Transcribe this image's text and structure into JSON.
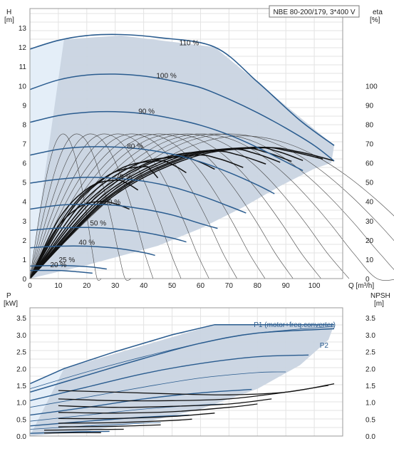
{
  "chart_data": [
    {
      "id": "head",
      "type": "line",
      "title": "NBE 80-200/179, 3*400 V",
      "xlabel": "Q [m³/h]",
      "ylabel_unit": "[m]",
      "ylabel_symbol": "H",
      "y2label_symbol": "eta",
      "y2label_unit": "[%]",
      "xlim": [
        0,
        110
      ],
      "ylim": [
        0,
        14
      ],
      "y2lim": [
        0,
        140
      ],
      "x_ticks": [
        0,
        10,
        20,
        30,
        40,
        50,
        60,
        70,
        80,
        90,
        100
      ],
      "x_tick_labels": [
        "0",
        "10",
        "20",
        "30",
        "40",
        "50",
        "60",
        "70",
        "80",
        "90",
        "100"
      ],
      "y_ticks": [
        0,
        1,
        2,
        3,
        4,
        5,
        6,
        7,
        8,
        9,
        10,
        11,
        12,
        13
      ],
      "y_tick_labels": [
        "0",
        "1",
        "2",
        "3",
        "4",
        "5",
        "6",
        "7",
        "8",
        "9",
        "10",
        "11",
        "12",
        "13"
      ],
      "y2_ticks": [
        0,
        10,
        20,
        30,
        40,
        50,
        60,
        70,
        80,
        90,
        100
      ],
      "y2_tick_labels": [
        "0",
        "10",
        "20",
        "30",
        "40",
        "50",
        "60",
        "70",
        "80",
        "90",
        "100"
      ],
      "grid": true,
      "envelope": [
        [
          0,
          0
        ],
        [
          0,
          11.9
        ],
        [
          12,
          12.4
        ],
        [
          32,
          12.6
        ],
        [
          65,
          12
        ],
        [
          107,
          6.9
        ],
        [
          106,
          6
        ],
        [
          100,
          5.7
        ],
        [
          88,
          4.8
        ],
        [
          75,
          3.7
        ],
        [
          60,
          2.6
        ],
        [
          45,
          1.7
        ],
        [
          30,
          1.1
        ],
        [
          20,
          0.7
        ],
        [
          10,
          0.35
        ],
        [
          0,
          0
        ]
      ],
      "speed_curves": [
        {
          "label": "110 %",
          "label_x": 56,
          "label_y": 12.1,
          "points": [
            [
              0,
              11.9
            ],
            [
              10,
              12.35
            ],
            [
              20,
              12.6
            ],
            [
              32,
              12.65
            ],
            [
              45,
              12.5
            ],
            [
              65,
              12.0
            ],
            [
              80,
              10.2
            ],
            [
              95,
              8.2
            ],
            [
              107,
              6.9
            ]
          ]
        },
        {
          "label": "100 %",
          "label_x": 48,
          "label_y": 10.4,
          "points": [
            [
              0,
              9.8
            ],
            [
              10,
              10.3
            ],
            [
              20,
              10.55
            ],
            [
              30,
              10.6
            ],
            [
              40,
              10.5
            ],
            [
              50,
              10.25
            ],
            [
              60,
              9.9
            ],
            [
              70,
              9.3
            ],
            [
              80,
              8.6
            ],
            [
              90,
              7.8
            ],
            [
              100,
              6.9
            ],
            [
              107,
              6.1
            ]
          ]
        },
        {
          "label": "90 %",
          "label_x": 41,
          "label_y": 8.55,
          "points": [
            [
              0,
              8.1
            ],
            [
              10,
              8.45
            ],
            [
              20,
              8.62
            ],
            [
              30,
              8.65
            ],
            [
              40,
              8.55
            ],
            [
              50,
              8.3
            ],
            [
              60,
              7.95
            ],
            [
              70,
              7.45
            ],
            [
              80,
              6.8
            ],
            [
              90,
              6.05
            ],
            [
              96,
              5.6
            ]
          ]
        },
        {
          "label": "80 %",
          "label_x": 37,
          "label_y": 6.75,
          "points": [
            [
              0,
              6.4
            ],
            [
              10,
              6.7
            ],
            [
              20,
              6.83
            ],
            [
              30,
              6.82
            ],
            [
              40,
              6.7
            ],
            [
              50,
              6.45
            ],
            [
              60,
              6.05
            ],
            [
              70,
              5.5
            ],
            [
              80,
              4.85
            ],
            [
              86,
              4.4
            ]
          ]
        },
        {
          "label": "70 %",
          "label_x": 33,
          "label_y": 5.15,
          "points": [
            [
              0,
              4.95
            ],
            [
              10,
              5.15
            ],
            [
              20,
              5.25
            ],
            [
              30,
              5.2
            ],
            [
              40,
              5.05
            ],
            [
              50,
              4.75
            ],
            [
              60,
              4.3
            ],
            [
              70,
              3.75
            ],
            [
              76,
              3.4
            ]
          ]
        },
        {
          "label": "60 %",
          "label_x": 29,
          "label_y": 3.85,
          "points": [
            [
              0,
              3.6
            ],
            [
              10,
              3.8
            ],
            [
              20,
              3.85
            ],
            [
              30,
              3.8
            ],
            [
              40,
              3.6
            ],
            [
              50,
              3.3
            ],
            [
              60,
              2.85
            ],
            [
              66,
              2.6
            ]
          ]
        },
        {
          "label": "50 %",
          "label_x": 24,
          "label_y": 2.75,
          "points": [
            [
              0,
              2.5
            ],
            [
              10,
              2.62
            ],
            [
              20,
              2.65
            ],
            [
              30,
              2.58
            ],
            [
              40,
              2.4
            ],
            [
              50,
              2.1
            ],
            [
              55,
              1.9
            ]
          ]
        },
        {
          "label": "40 %",
          "label_x": 20,
          "label_y": 1.75,
          "points": [
            [
              0,
              1.6
            ],
            [
              10,
              1.68
            ],
            [
              20,
              1.68
            ],
            [
              30,
              1.58
            ],
            [
              40,
              1.35
            ],
            [
              44,
              1.2
            ]
          ]
        },
        {
          "label": "25 %",
          "label_x": 13,
          "label_y": 0.85,
          "points": [
            [
              0,
              0.65
            ],
            [
              10,
              0.68
            ],
            [
              20,
              0.62
            ],
            [
              27,
              0.5
            ]
          ]
        },
        {
          "label": "20 %",
          "label_x": 10,
          "label_y": 0.6,
          "points": [
            [
              0,
              0.42
            ],
            [
              10,
              0.42
            ],
            [
              17,
              0.35
            ],
            [
              22,
              0.28
            ]
          ]
        }
      ],
      "eta_curves_thin_peaks": [
        [
          12,
          75
        ],
        [
          17,
          75
        ],
        [
          22,
          75
        ],
        [
          27,
          75
        ],
        [
          32,
          75
        ],
        [
          37,
          75
        ],
        [
          42,
          75
        ],
        [
          47,
          75
        ],
        [
          52,
          75
        ],
        [
          57,
          75
        ],
        [
          62,
          75
        ],
        [
          67,
          75
        ],
        [
          72,
          75
        ],
        [
          77,
          74
        ]
      ],
      "eta_curves_bold_peaks": [
        [
          25,
          40
        ],
        [
          30,
          51
        ],
        [
          40,
          58
        ],
        [
          45,
          61
        ],
        [
          52,
          63
        ],
        [
          58,
          64
        ],
        [
          64,
          66
        ],
        [
          70,
          67
        ],
        [
          74,
          67.5
        ],
        [
          78,
          68
        ],
        [
          80,
          68
        ],
        [
          82,
          67.8
        ]
      ],
      "eta_curves_bold_ends": [
        [
          35,
          13
        ],
        [
          38,
          18
        ],
        [
          45,
          25
        ],
        [
          55,
          35
        ],
        [
          65,
          43
        ],
        [
          75,
          50
        ],
        [
          83,
          55
        ],
        [
          88,
          58
        ],
        [
          92,
          60
        ],
        [
          96,
          61
        ],
        [
          103,
          62
        ],
        [
          107,
          61
        ]
      ]
    },
    {
      "id": "power",
      "type": "line",
      "xlim": [
        0,
        110
      ],
      "ylim": [
        0,
        3.8
      ],
      "y2lim": [
        0,
        3.8
      ],
      "ylabel_symbol": "P",
      "ylabel_unit": "[kW]",
      "y2label_symbol": "NPSH",
      "y2label_unit": "[m]",
      "y_ticks": [
        0,
        0.5,
        1,
        1.5,
        2,
        2.5,
        3,
        3.5
      ],
      "y_tick_labels": [
        "0.0",
        "0.5",
        "1.0",
        "1.5",
        "2.0",
        "2.5",
        "3.0",
        "3.5"
      ],
      "y2_tick_labels": [
        "0.0",
        "0.5",
        "1.0",
        "1.5",
        "2.0",
        "2.5",
        "3.0",
        "3.5"
      ],
      "grid": true,
      "legend": [
        "P1 (motor+freq.converter)",
        "P2"
      ],
      "envelope": [
        [
          0,
          0
        ],
        [
          0,
          1.55
        ],
        [
          12,
          2.0
        ],
        [
          65,
          3.3
        ],
        [
          107,
          3.3
        ],
        [
          105,
          2.85
        ],
        [
          95,
          2.1
        ],
        [
          80,
          1.4
        ],
        [
          60,
          0.8
        ],
        [
          40,
          0.4
        ],
        [
          20,
          0.15
        ],
        [
          0,
          0
        ]
      ],
      "p1_curve": [
        [
          0,
          1.55
        ],
        [
          12,
          2.0
        ],
        [
          30,
          2.5
        ],
        [
          50,
          3.0
        ],
        [
          65,
          3.3
        ],
        [
          107,
          3.3
        ]
      ],
      "p2_curve": [
        [
          0,
          1.3
        ],
        [
          20,
          1.8
        ],
        [
          40,
          2.3
        ],
        [
          60,
          2.75
        ],
        [
          80,
          3.05
        ],
        [
          107,
          3.18
        ]
      ],
      "p2_thin_curves": [
        [
          [
            0,
            1.4
          ],
          [
            20,
            1.9
          ],
          [
            40,
            2.35
          ],
          [
            60,
            2.75
          ],
          [
            80,
            3.05
          ],
          [
            107,
            3.25
          ]
        ],
        [
          [
            0,
            1.05
          ],
          [
            20,
            1.45
          ],
          [
            40,
            1.85
          ],
          [
            60,
            2.15
          ],
          [
            80,
            2.35
          ],
          [
            98,
            2.4
          ]
        ],
        [
          [
            0,
            0.85
          ],
          [
            20,
            1.15
          ],
          [
            40,
            1.45
          ],
          [
            60,
            1.72
          ],
          [
            80,
            1.88
          ],
          [
            90,
            1.9
          ]
        ],
        [
          [
            0,
            0.62
          ],
          [
            20,
            0.85
          ],
          [
            40,
            1.1
          ],
          [
            60,
            1.28
          ],
          [
            78,
            1.38
          ]
        ],
        [
          [
            0,
            0.44
          ],
          [
            20,
            0.62
          ],
          [
            40,
            0.8
          ],
          [
            60,
            0.92
          ],
          [
            68,
            0.95
          ]
        ],
        [
          [
            0,
            0.3
          ],
          [
            20,
            0.44
          ],
          [
            40,
            0.56
          ],
          [
            56,
            0.62
          ]
        ],
        [
          [
            0,
            0.2
          ],
          [
            20,
            0.3
          ],
          [
            40,
            0.38
          ],
          [
            46,
            0.4
          ]
        ],
        [
          [
            0,
            0.08
          ],
          [
            15,
            0.12
          ],
          [
            28,
            0.14
          ]
        ]
      ],
      "npsh_curves": [
        [
          [
            10,
            1.35
          ],
          [
            30,
            1.3
          ],
          [
            50,
            1.25
          ],
          [
            70,
            1.22
          ],
          [
            90,
            1.3
          ],
          [
            107,
            1.55
          ]
        ],
        [
          [
            10,
            1.1
          ],
          [
            30,
            1.05
          ],
          [
            50,
            1.05
          ],
          [
            70,
            1.1
          ],
          [
            90,
            1.3
          ],
          [
            105,
            1.5
          ]
        ],
        [
          [
            10,
            0.9
          ],
          [
            30,
            0.85
          ],
          [
            50,
            0.88
          ],
          [
            70,
            0.95
          ],
          [
            85,
            1.1
          ]
        ],
        [
          [
            10,
            0.7
          ],
          [
            30,
            0.68
          ],
          [
            50,
            0.72
          ],
          [
            70,
            0.85
          ],
          [
            80,
            0.95
          ]
        ],
        [
          [
            10,
            0.52
          ],
          [
            30,
            0.52
          ],
          [
            50,
            0.58
          ],
          [
            65,
            0.68
          ]
        ],
        [
          [
            10,
            0.38
          ],
          [
            30,
            0.4
          ],
          [
            50,
            0.46
          ],
          [
            57,
            0.5
          ]
        ],
        [
          [
            10,
            0.27
          ],
          [
            30,
            0.29
          ],
          [
            46,
            0.33
          ]
        ],
        [
          [
            5,
            0.17
          ],
          [
            20,
            0.19
          ],
          [
            33,
            0.2
          ]
        ],
        [
          [
            5,
            0.09
          ],
          [
            15,
            0.1
          ],
          [
            25,
            0.1
          ]
        ]
      ]
    }
  ],
  "colors": {
    "curve": "#2a5c8f",
    "fill": "#c9d4e1",
    "fill_light": "#e4eef8",
    "grid": "#e3e3e3",
    "black_curve": "#111111"
  }
}
